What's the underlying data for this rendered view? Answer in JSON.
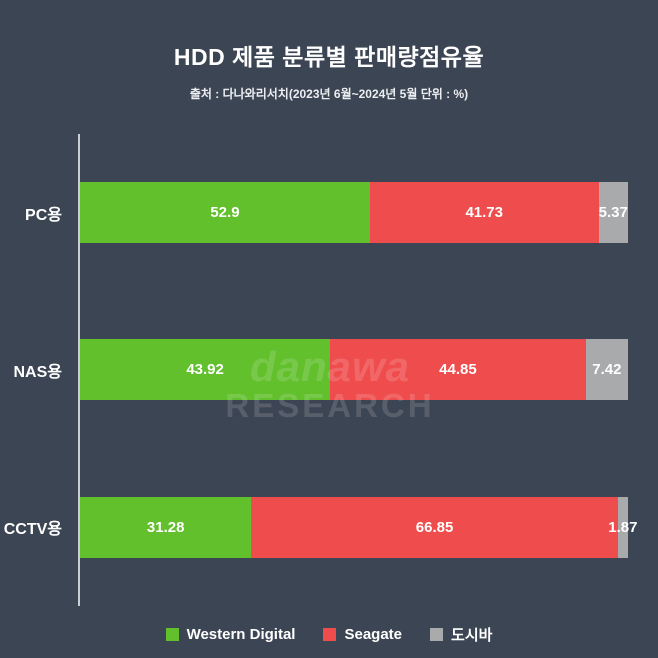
{
  "page": {
    "background_color": "#3c4553"
  },
  "header": {
    "title": "HDD 제품 분류별 판매량점유율",
    "subtitle": "출처 : 다나와리서치(2023년 6월~2024년 5월 단위 : %)"
  },
  "chart_data": {
    "type": "bar",
    "orientation": "horizontal",
    "stacked": true,
    "title": "HDD 제품 분류별 판매량점유율",
    "unit": "%",
    "grid": false,
    "legend_position": "bottom",
    "categories": [
      "PC용",
      "NAS용",
      "CCTV용"
    ],
    "series": [
      {
        "name": "Western Digital",
        "color": "#62c02d",
        "values": [
          52.9,
          43.92,
          31.28
        ]
      },
      {
        "name": "Seagate",
        "color": "#ef4d4d",
        "values": [
          41.73,
          44.85,
          66.85
        ]
      },
      {
        "name": "도시바",
        "color": "#a8aaac",
        "values": [
          5.37,
          7.42,
          1.87
        ]
      }
    ]
  },
  "legend": {
    "items": [
      {
        "label": "Western Digital",
        "color": "#62c02d"
      },
      {
        "label": "Seagate",
        "color": "#ef4d4d"
      },
      {
        "label": "도시바",
        "color": "#a8aaac"
      }
    ]
  },
  "watermark": {
    "line1": "danawa",
    "line2": "RESEARCH"
  }
}
